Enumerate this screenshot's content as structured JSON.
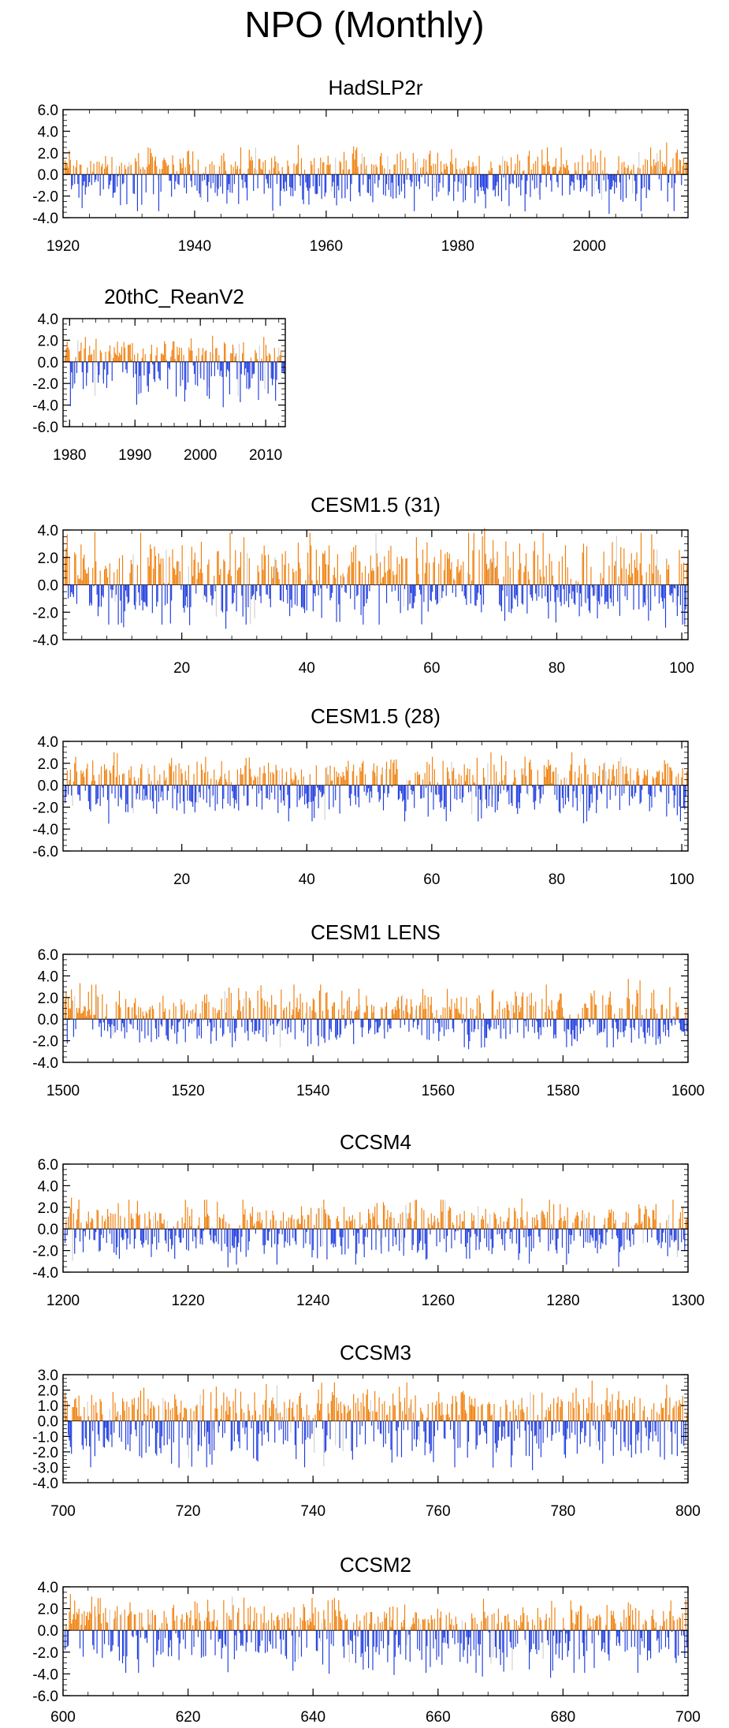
{
  "page": {
    "title": "NPO (Monthly)"
  },
  "colors": {
    "positive": "#f07f0a",
    "negative": "#1d3be0",
    "faint": "#d0d0d0",
    "frame": "#000000"
  },
  "chart_data": [
    {
      "type": "bar",
      "title": "HadSLP2r",
      "x_range": [
        1920,
        2015
      ],
      "ylim": [
        -4.0,
        6.0
      ],
      "yticks": [
        "6.0",
        "4.0",
        "2.0",
        "0.0",
        "-2.0",
        "-4.0"
      ],
      "ytick_values": [
        6,
        4,
        2,
        0,
        -2,
        -4
      ],
      "xticks": [
        "1920",
        "1940",
        "1960",
        "1980",
        "2000"
      ],
      "xtick_values": [
        1920,
        1940,
        1960,
        1980,
        2000
      ],
      "series": [],
      "amplitude": {
        "positive_max": 2.5,
        "negative_max": 3.4
      },
      "seed": 11
    },
    {
      "type": "bar",
      "title": "20thC_ReanV2",
      "x_range": [
        1979,
        2013
      ],
      "ylim": [
        -6.0,
        4.0
      ],
      "yticks": [
        "4.0",
        "2.0",
        "0.0",
        "-2.0",
        "-4.0",
        "-6.0"
      ],
      "ytick_values": [
        4,
        2,
        0,
        -2,
        -4,
        -6
      ],
      "xticks": [
        "1980",
        "1990",
        "2000",
        "2010"
      ],
      "xtick_values": [
        1980,
        1990,
        2000,
        2010
      ],
      "series": [],
      "amplitude": {
        "positive_max": 2.3,
        "negative_max": 4.2
      },
      "seed": 23
    },
    {
      "type": "bar",
      "title": "CESM1.5 (31)",
      "x_range": [
        1,
        101
      ],
      "ylim": [
        -4.0,
        4.0
      ],
      "yticks": [
        "4.0",
        "2.0",
        "0.0",
        "-2.0",
        "-4.0"
      ],
      "ytick_values": [
        4,
        2,
        0,
        -2,
        -4
      ],
      "xticks": [
        "20",
        "40",
        "60",
        "80",
        "100"
      ],
      "xtick_values": [
        20,
        40,
        60,
        80,
        100
      ],
      "series": [],
      "amplitude": {
        "positive_max": 3.8,
        "negative_max": 2.9
      },
      "seed": 37
    },
    {
      "type": "bar",
      "title": "CESM1.5 (28)",
      "x_range": [
        1,
        101
      ],
      "ylim": [
        -6.0,
        4.0
      ],
      "yticks": [
        "4.0",
        "2.0",
        "0.0",
        "-2.0",
        "-4.0",
        "-6.0"
      ],
      "ytick_values": [
        4,
        2,
        0,
        -2,
        -4,
        -6
      ],
      "xticks": [
        "20",
        "40",
        "60",
        "80",
        "100"
      ],
      "xtick_values": [
        20,
        40,
        60,
        80,
        100
      ],
      "series": [],
      "amplitude": {
        "positive_max": 3.0,
        "negative_max": 3.3
      },
      "seed": 41
    },
    {
      "type": "bar",
      "title": "CESM1 LENS",
      "x_range": [
        1500,
        1600
      ],
      "ylim": [
        -4.0,
        6.0
      ],
      "yticks": [
        "6.0",
        "4.0",
        "2.0",
        "0.0",
        "-2.0",
        "-4.0"
      ],
      "ytick_values": [
        6,
        4,
        2,
        0,
        -2,
        -4
      ],
      "xticks": [
        "1500",
        "1520",
        "1540",
        "1560",
        "1580",
        "1600"
      ],
      "xtick_values": [
        1500,
        1520,
        1540,
        1560,
        1580,
        1600
      ],
      "series": [],
      "amplitude": {
        "positive_max": 3.2,
        "negative_max": 2.6
      },
      "seed": 53
    },
    {
      "type": "bar",
      "title": "CCSM4",
      "x_range": [
        1200,
        1300
      ],
      "ylim": [
        -4.0,
        6.0
      ],
      "yticks": [
        "6.0",
        "4.0",
        "2.0",
        "0.0",
        "-2.0",
        "-4.0"
      ],
      "ytick_values": [
        6,
        4,
        2,
        0,
        -2,
        -4
      ],
      "xticks": [
        "1200",
        "1220",
        "1240",
        "1260",
        "1280",
        "1300"
      ],
      "xtick_values": [
        1200,
        1220,
        1240,
        1260,
        1280,
        1300
      ],
      "series": [],
      "amplitude": {
        "positive_max": 2.7,
        "negative_max": 3.3
      },
      "seed": 67
    },
    {
      "type": "bar",
      "title": "CCSM3",
      "x_range": [
        700,
        800
      ],
      "ylim": [
        -4.0,
        3.0
      ],
      "yticks": [
        "3.0",
        "2.0",
        "1.0",
        "0.0",
        "-1.0",
        "-2.0",
        "-3.0",
        "-4.0"
      ],
      "ytick_values": [
        3,
        2,
        1,
        0,
        -1,
        -2,
        -3,
        -4
      ],
      "xticks": [
        "700",
        "720",
        "740",
        "760",
        "780",
        "800"
      ],
      "xtick_values": [
        700,
        720,
        740,
        760,
        780,
        800
      ],
      "series": [],
      "amplitude": {
        "positive_max": 2.5,
        "negative_max": 3.0
      },
      "seed": 79
    },
    {
      "type": "bar",
      "title": "CCSM2",
      "x_range": [
        600,
        700
      ],
      "ylim": [
        -6.0,
        4.0
      ],
      "yticks": [
        "4.0",
        "2.0",
        "0.0",
        "-2.0",
        "-4.0",
        "-6.0"
      ],
      "ytick_values": [
        4,
        2,
        0,
        -2,
        -4,
        -6
      ],
      "xticks": [
        "600",
        "620",
        "640",
        "660",
        "680",
        "700"
      ],
      "xtick_values": [
        600,
        620,
        640,
        660,
        680,
        700
      ],
      "series": [],
      "amplitude": {
        "positive_max": 3.1,
        "negative_max": 3.9
      },
      "seed": 97
    }
  ]
}
